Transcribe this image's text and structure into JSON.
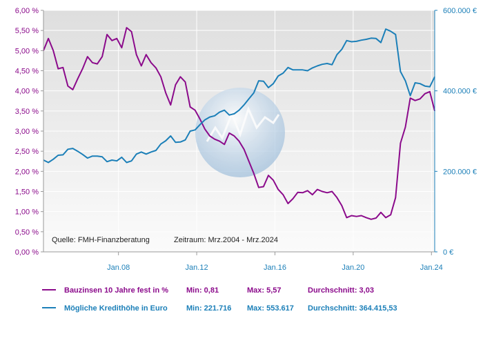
{
  "chart_data": {
    "type": "line",
    "x_ticks": [
      "Jan.08",
      "Jan.12",
      "Jan.16",
      "Jan.20",
      "Jan.24"
    ],
    "x_range": [
      "2004-03",
      "2024-03"
    ],
    "y_left": {
      "ticks": [
        "0,00 %",
        "0,50 %",
        "1,00 %",
        "1,50 %",
        "2,00 %",
        "2,50 %",
        "3,00 %",
        "3,50 %",
        "4,00 %",
        "4,50 %",
        "5,00 %",
        "5,50 %",
        "6,00 %"
      ],
      "range": [
        0,
        6
      ]
    },
    "y_right": {
      "ticks": [
        "0 €",
        "200.000 €",
        "400.000 €",
        "600.000 €"
      ],
      "range": [
        0,
        600000
      ]
    },
    "grid": true,
    "source_note": "Quelle: FMH-Finanzberatung",
    "period_note": "Zeitraum: Mrz.2004 - Mrz.2024",
    "series": [
      {
        "name": "Bauzinsen 10 Jahre fest in %",
        "axis": "left",
        "color": "#8b0a8b",
        "min_label": "Min: 0,81",
        "max_label": "Max: 5,57",
        "avg_label": "Durchschnitt: 3,03",
        "points": [
          [
            "2004-03",
            5.0
          ],
          [
            "2004-06",
            5.3
          ],
          [
            "2004-09",
            5.0
          ],
          [
            "2004-12",
            4.55
          ],
          [
            "2005-03",
            4.58
          ],
          [
            "2005-06",
            4.12
          ],
          [
            "2005-09",
            4.03
          ],
          [
            "2005-12",
            4.3
          ],
          [
            "2006-03",
            4.55
          ],
          [
            "2006-06",
            4.85
          ],
          [
            "2006-09",
            4.7
          ],
          [
            "2006-12",
            4.67
          ],
          [
            "2007-03",
            4.85
          ],
          [
            "2007-06",
            5.4
          ],
          [
            "2007-09",
            5.25
          ],
          [
            "2007-12",
            5.3
          ],
          [
            "2008-03",
            5.07
          ],
          [
            "2008-06",
            5.57
          ],
          [
            "2008-09",
            5.47
          ],
          [
            "2008-12",
            4.9
          ],
          [
            "2009-03",
            4.62
          ],
          [
            "2009-06",
            4.9
          ],
          [
            "2009-09",
            4.7
          ],
          [
            "2009-12",
            4.57
          ],
          [
            "2010-03",
            4.35
          ],
          [
            "2010-06",
            3.95
          ],
          [
            "2010-09",
            3.65
          ],
          [
            "2010-12",
            4.15
          ],
          [
            "2011-03",
            4.35
          ],
          [
            "2011-06",
            4.22
          ],
          [
            "2011-09",
            3.6
          ],
          [
            "2011-12",
            3.52
          ],
          [
            "2012-03",
            3.3
          ],
          [
            "2012-06",
            3.05
          ],
          [
            "2012-09",
            2.88
          ],
          [
            "2012-12",
            2.8
          ],
          [
            "2013-03",
            2.75
          ],
          [
            "2013-06",
            2.67
          ],
          [
            "2013-09",
            2.95
          ],
          [
            "2013-12",
            2.88
          ],
          [
            "2014-03",
            2.75
          ],
          [
            "2014-06",
            2.55
          ],
          [
            "2014-09",
            2.25
          ],
          [
            "2014-12",
            1.95
          ],
          [
            "2015-03",
            1.6
          ],
          [
            "2015-06",
            1.62
          ],
          [
            "2015-09",
            1.9
          ],
          [
            "2015-12",
            1.78
          ],
          [
            "2016-03",
            1.55
          ],
          [
            "2016-06",
            1.42
          ],
          [
            "2016-09",
            1.2
          ],
          [
            "2016-12",
            1.32
          ],
          [
            "2017-03",
            1.48
          ],
          [
            "2017-06",
            1.47
          ],
          [
            "2017-09",
            1.52
          ],
          [
            "2017-12",
            1.42
          ],
          [
            "2018-03",
            1.55
          ],
          [
            "2018-06",
            1.5
          ],
          [
            "2018-09",
            1.47
          ],
          [
            "2018-12",
            1.5
          ],
          [
            "2019-03",
            1.35
          ],
          [
            "2019-06",
            1.15
          ],
          [
            "2019-09",
            0.85
          ],
          [
            "2019-12",
            0.9
          ],
          [
            "2020-03",
            0.88
          ],
          [
            "2020-06",
            0.9
          ],
          [
            "2020-09",
            0.85
          ],
          [
            "2020-12",
            0.81
          ],
          [
            "2021-03",
            0.84
          ],
          [
            "2021-06",
            0.98
          ],
          [
            "2021-09",
            0.85
          ],
          [
            "2021-12",
            0.92
          ],
          [
            "2022-03",
            1.35
          ],
          [
            "2022-06",
            2.7
          ],
          [
            "2022-09",
            3.1
          ],
          [
            "2022-12",
            3.82
          ],
          [
            "2023-03",
            3.76
          ],
          [
            "2023-06",
            3.8
          ],
          [
            "2023-09",
            3.93
          ],
          [
            "2023-12",
            3.98
          ],
          [
            "2024-03",
            3.5
          ]
        ]
      },
      {
        "name": "Mögliche Kredithöhe in Euro",
        "axis": "right",
        "color": "#1b7fb8",
        "min_label": "Min: 221.716",
        "max_label": "Max: 553.617",
        "avg_label": "Durchschnitt: 364.415,53",
        "points": [
          [
            "2004-03",
            228000
          ],
          [
            "2004-06",
            222000
          ],
          [
            "2004-09",
            230000
          ],
          [
            "2004-12",
            240000
          ],
          [
            "2005-03",
            241000
          ],
          [
            "2005-06",
            255000
          ],
          [
            "2005-09",
            257000
          ],
          [
            "2005-12",
            250000
          ],
          [
            "2006-03",
            242000
          ],
          [
            "2006-06",
            233000
          ],
          [
            "2006-09",
            238000
          ],
          [
            "2006-12",
            238000
          ],
          [
            "2007-03",
            236000
          ],
          [
            "2007-06",
            224000
          ],
          [
            "2007-09",
            228000
          ],
          [
            "2007-12",
            226000
          ],
          [
            "2008-03",
            235000
          ],
          [
            "2008-06",
            222000
          ],
          [
            "2008-09",
            226000
          ],
          [
            "2008-12",
            243000
          ],
          [
            "2009-03",
            248000
          ],
          [
            "2009-06",
            243000
          ],
          [
            "2009-09",
            248000
          ],
          [
            "2009-12",
            252000
          ],
          [
            "2010-03",
            268000
          ],
          [
            "2010-06",
            276000
          ],
          [
            "2010-09",
            288000
          ],
          [
            "2010-12",
            272000
          ],
          [
            "2011-03",
            273000
          ],
          [
            "2011-06",
            278000
          ],
          [
            "2011-09",
            300000
          ],
          [
            "2011-12",
            303000
          ],
          [
            "2012-03",
            316000
          ],
          [
            "2012-06",
            328000
          ],
          [
            "2012-09",
            335000
          ],
          [
            "2012-12",
            338000
          ],
          [
            "2013-03",
            347000
          ],
          [
            "2013-06",
            352000
          ],
          [
            "2013-09",
            340000
          ],
          [
            "2013-12",
            343000
          ],
          [
            "2014-03",
            352000
          ],
          [
            "2014-06",
            365000
          ],
          [
            "2014-09",
            380000
          ],
          [
            "2014-12",
            395000
          ],
          [
            "2015-03",
            425000
          ],
          [
            "2015-06",
            424000
          ],
          [
            "2015-09",
            408000
          ],
          [
            "2015-12",
            418000
          ],
          [
            "2016-03",
            437000
          ],
          [
            "2016-06",
            444000
          ],
          [
            "2016-09",
            458000
          ],
          [
            "2016-12",
            452000
          ],
          [
            "2017-03",
            452000
          ],
          [
            "2017-06",
            452000
          ],
          [
            "2017-09",
            450000
          ],
          [
            "2017-12",
            457000
          ],
          [
            "2018-03",
            462000
          ],
          [
            "2018-06",
            466000
          ],
          [
            "2018-09",
            468000
          ],
          [
            "2018-12",
            465000
          ],
          [
            "2019-03",
            490000
          ],
          [
            "2019-06",
            503000
          ],
          [
            "2019-09",
            525000
          ],
          [
            "2019-12",
            522000
          ],
          [
            "2020-03",
            523000
          ],
          [
            "2020-06",
            526000
          ],
          [
            "2020-09",
            528000
          ],
          [
            "2020-12",
            531000
          ],
          [
            "2021-03",
            530000
          ],
          [
            "2021-06",
            520000
          ],
          [
            "2021-09",
            553617
          ],
          [
            "2021-12",
            548000
          ],
          [
            "2022-03",
            540000
          ],
          [
            "2022-06",
            448000
          ],
          [
            "2022-09",
            425000
          ],
          [
            "2022-12",
            388000
          ],
          [
            "2023-03",
            420000
          ],
          [
            "2023-06",
            418000
          ],
          [
            "2023-09",
            412000
          ],
          [
            "2023-12",
            410000
          ],
          [
            "2024-03",
            435000
          ]
        ]
      }
    ]
  }
}
